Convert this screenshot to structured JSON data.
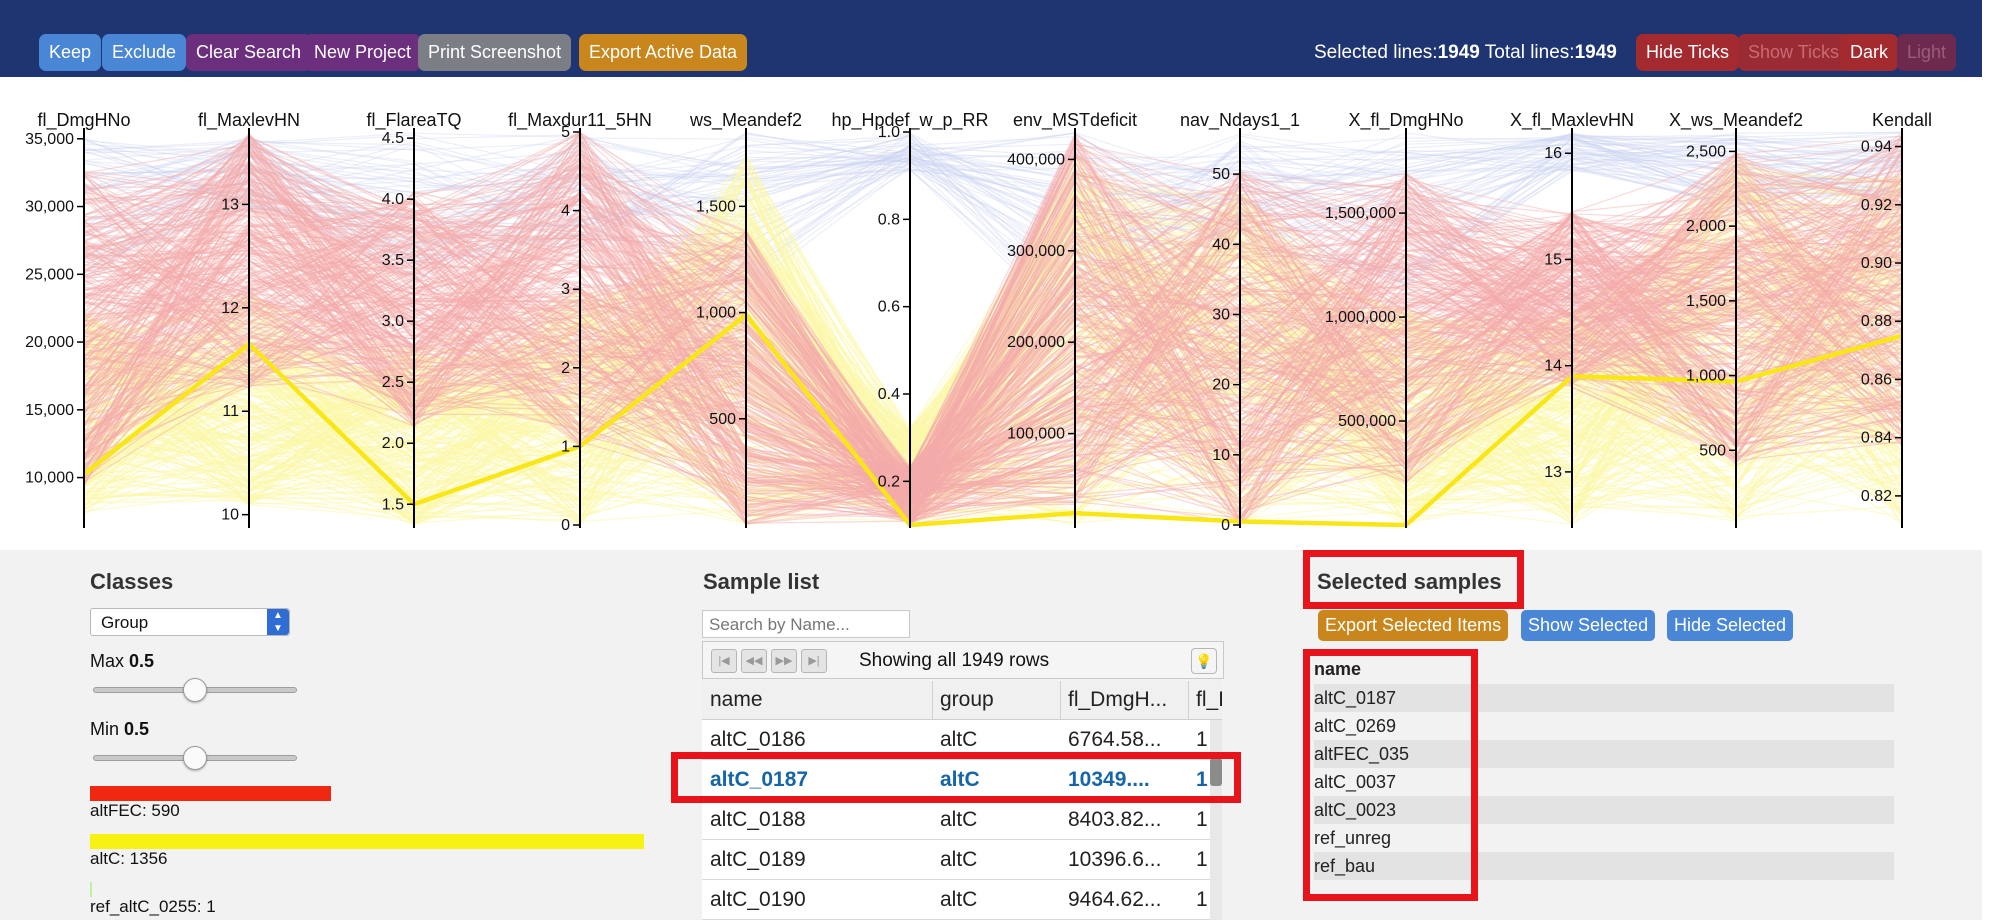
{
  "toolbar": {
    "buttons": [
      "Keep",
      "Exclude",
      "Clear Search",
      "New Project",
      "Print Screenshot",
      "Export Active Data"
    ],
    "selected_label": "Selected lines:",
    "selected_count": "1949",
    "total_label": "Total lines:",
    "total_count": "1949",
    "hide_ticks": "Hide Ticks",
    "show_ticks": "Show Ticks",
    "dark": "Dark",
    "light": "Light"
  },
  "chart_data": {
    "type": "parallel",
    "axes": [
      {
        "name": "fl_DmgHNo",
        "ticks": [
          "35,000",
          "30,000",
          "25,000",
          "20,000",
          "15,000",
          "10,000"
        ],
        "tick_values": [
          35000,
          30000,
          25000,
          20000,
          15000,
          10000
        ],
        "range": [
          6500,
          35500
        ]
      },
      {
        "name": "fl_MaxlevHN",
        "ticks": [
          "13",
          "12",
          "11",
          "10"
        ],
        "tick_values": [
          13,
          12,
          11,
          10
        ],
        "range": [
          9.9,
          13.7
        ]
      },
      {
        "name": "fl_FlareaTQ",
        "ticks": [
          "4.5",
          "4.0",
          "3.5",
          "3.0",
          "2.5",
          "2.0",
          "1.5"
        ],
        "tick_values": [
          4.5,
          4.0,
          3.5,
          3.0,
          2.5,
          2.0,
          1.5
        ],
        "range": [
          1.33,
          4.55
        ]
      },
      {
        "name": "fl_Maxdur11_5HN",
        "ticks": [
          "5",
          "4",
          "3",
          "2",
          "1",
          "0"
        ],
        "tick_values": [
          5,
          4,
          3,
          2,
          1,
          0
        ],
        "range": [
          0,
          5
        ]
      },
      {
        "name": "ws_Meandef2",
        "ticks": [
          "1,500",
          "1,000",
          "500"
        ],
        "tick_values": [
          1500,
          1000,
          500
        ],
        "range": [
          0,
          1850
        ]
      },
      {
        "name": "hp_Hpdef_w_p_RR",
        "ticks": [
          "1.0",
          "0.8",
          "0.6",
          "0.4",
          "0.2"
        ],
        "tick_values": [
          1.0,
          0.8,
          0.6,
          0.4,
          0.2
        ],
        "range": [
          0.1,
          1.0
        ]
      },
      {
        "name": "env_MSTdeficit",
        "ticks": [
          "400,000",
          "300,000",
          "200,000",
          "100,000"
        ],
        "tick_values": [
          400000,
          300000,
          200000,
          100000
        ],
        "range": [
          0,
          430000
        ]
      },
      {
        "name": "nav_Ndays1_1",
        "ticks": [
          "50",
          "40",
          "30",
          "20",
          "10",
          "0"
        ],
        "tick_values": [
          50,
          40,
          30,
          20,
          10,
          0
        ],
        "range": [
          0,
          56
        ]
      },
      {
        "name": "X_fl_DmgHNo",
        "ticks": [
          "1,500,000",
          "1,000,000",
          "500,000"
        ],
        "tick_values": [
          1500000,
          1000000,
          500000
        ],
        "range": [
          0,
          1890000
        ]
      },
      {
        "name": "X_fl_MaxlevHN",
        "ticks": [
          "16",
          "15",
          "14",
          "13"
        ],
        "tick_values": [
          16,
          15,
          14,
          13
        ],
        "range": [
          12.5,
          16.2
        ]
      },
      {
        "name": "X_ws_Meandef2",
        "ticks": [
          "2,500",
          "2,000",
          "1,500",
          "1,000",
          "500"
        ],
        "tick_values": [
          2500,
          2000,
          1500,
          1000,
          500
        ],
        "range": [
          0,
          2630
        ]
      },
      {
        "name": "Kendall",
        "ticks": [
          "0.94",
          "0.92",
          "0.90",
          "0.88",
          "0.86",
          "0.84",
          "0.82"
        ],
        "tick_values": [
          0.94,
          0.92,
          0.9,
          0.88,
          0.86,
          0.84,
          0.82
        ],
        "range": [
          0.81,
          0.945
        ]
      }
    ],
    "highlighted_line": [
      10250,
      11.65,
      1.5,
      1.0,
      990,
      0.1,
      13000,
      0.5,
      0,
      13.9,
      960,
      0.875
    ],
    "colors": {
      "altFEC": "#f4aaaa",
      "altC": "#fbf7a8",
      "highlight": "#f9e616",
      "other": "#c8d0f0"
    }
  },
  "classes": {
    "title": "Classes",
    "select_value": "Group",
    "max_label": "Max",
    "max_value": "0.5",
    "min_label": "Min",
    "min_value": "0.5",
    "items": [
      {
        "label": "altFEC: 590",
        "color": "#f02812",
        "count": 590
      },
      {
        "label": "altC: 1356",
        "color": "#f7f212",
        "count": 1356
      },
      {
        "label": "ref_altC_0255: 1",
        "color": "#b9f3a0",
        "count": 1
      }
    ]
  },
  "sample_list": {
    "title": "Sample list",
    "search_placeholder": "Search by Name...",
    "status": "Showing all 1949 rows",
    "columns": [
      "name",
      "group",
      "fl_DmgH...",
      "fl_I"
    ],
    "rows": [
      [
        "altC_0186",
        "altC",
        "6764.58...",
        "1"
      ],
      [
        "altC_0187",
        "altC",
        "10349....",
        "1"
      ],
      [
        "altC_0188",
        "altC",
        "8403.82...",
        "1"
      ],
      [
        "altC_0189",
        "altC",
        "10396.6...",
        "1"
      ],
      [
        "altC_0190",
        "altC",
        "9464.62...",
        "1"
      ]
    ],
    "selected_row_index": 1
  },
  "selected_samples": {
    "title": "Selected samples",
    "export_label": "Export Selected Items",
    "show_label": "Show Selected",
    "hide_label": "Hide Selected",
    "column": "name",
    "items": [
      "altC_0187",
      "altC_0269",
      "altFEC_035",
      "altC_0037",
      "altC_0023",
      "ref_unreg",
      "ref_bau"
    ]
  }
}
